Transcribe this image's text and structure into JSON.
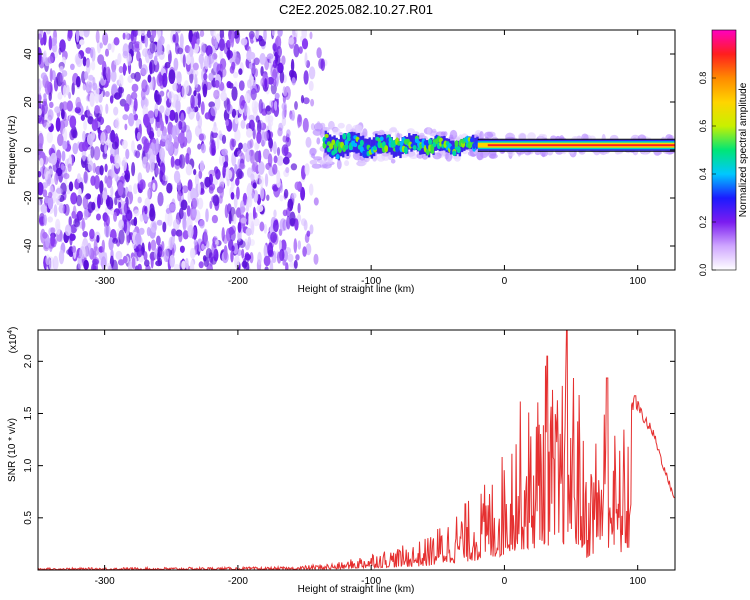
{
  "title": "C2E2.2025.082.10.27.R01",
  "chart_data": [
    {
      "type": "heatmap",
      "name": "spectrogram",
      "xlabel": "Height of straight line (km)",
      "ylabel": "Frequency (Hz)",
      "xlim": [
        -350,
        128
      ],
      "ylim": [
        -50,
        50
      ],
      "x_ticks": [
        -300,
        -200,
        -100,
        0,
        100
      ],
      "x_tick_labels": [
        "-300",
        "-200",
        "-100",
        "0",
        "100"
      ],
      "y_ticks": [
        -40,
        -20,
        0,
        20,
        40
      ],
      "y_tick_labels": [
        "-40",
        "-20",
        "0",
        "20",
        "40"
      ],
      "noise_region_end_km": -140,
      "signal_start_km": -135,
      "signal_band_center_hz": 2,
      "colorbar": {
        "label": "Normalized spectral amplitude",
        "range": [
          0,
          1
        ],
        "ticks": [
          0.0,
          0.2,
          0.4,
          0.6,
          0.8
        ],
        "tick_labels": [
          "0.0",
          "0.2",
          "0.4",
          "0.6",
          "0.8"
        ],
        "colors": [
          "#ffffff",
          "#cfa6ff",
          "#7b1cf0",
          "#1b1bff",
          "#00c8ff",
          "#00e676",
          "#c8f000",
          "#ffd400",
          "#ff8a00",
          "#ff1e1e",
          "#ff00c0"
        ]
      }
    },
    {
      "type": "line",
      "name": "snr",
      "xlabel": "Height of straight line (km)",
      "ylabel": "SNR (10 * v/v)",
      "y_scale_label": "(x10",
      "y_scale_exponent": "4",
      "xlim": [
        -350,
        128
      ],
      "ylim": [
        0,
        2.3
      ],
      "x_ticks": [
        -300,
        -200,
        -100,
        0,
        100
      ],
      "x_tick_labels": [
        "-300",
        "-200",
        "-100",
        "0",
        "100"
      ],
      "y_ticks": [
        0.5,
        1.0,
        1.5,
        2.0
      ],
      "y_tick_labels": [
        "0.5",
        "1.0",
        "1.5",
        "2.0"
      ],
      "line_color": "#e53030",
      "envelope": {
        "x": [
          -350,
          -160,
          -120,
          -100,
          -80,
          -60,
          -40,
          -20,
          -5,
          10,
          20,
          30,
          40,
          48,
          55,
          62,
          70,
          77,
          85,
          92,
          98,
          105,
          112,
          120,
          128
        ],
        "y": [
          0.02,
          0.03,
          0.08,
          0.18,
          0.22,
          0.3,
          0.55,
          0.75,
          1.0,
          1.65,
          1.6,
          2.05,
          1.7,
          2.3,
          1.9,
          0.95,
          1.5,
          1.85,
          1.2,
          1.52,
          1.68,
          1.5,
          1.35,
          1.0,
          0.7
        ]
      },
      "peaks": [
        {
          "x": 32,
          "y": 2.05
        },
        {
          "x": 47,
          "y": 2.3
        },
        {
          "x": 77,
          "y": 1.84
        },
        {
          "x": 98,
          "y": 1.67
        }
      ]
    }
  ]
}
